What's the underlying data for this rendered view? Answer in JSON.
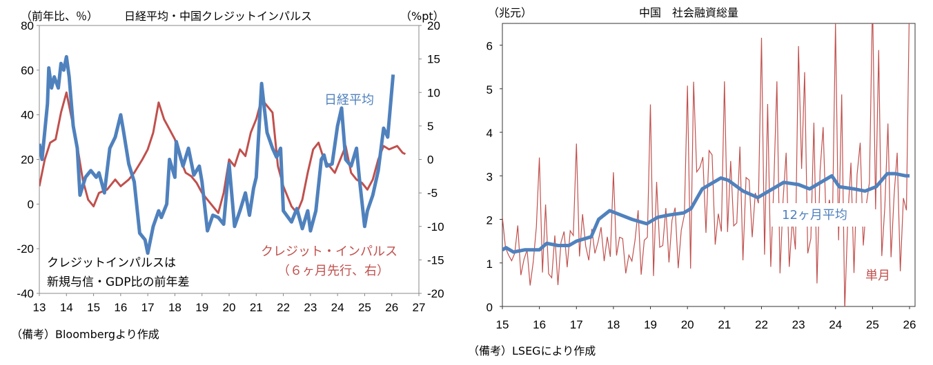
{
  "colors": {
    "blue": "#4f81bd",
    "red": "#c0504d"
  },
  "chart_data": [
    {
      "type": "line",
      "title": "日経平均・中国クレジットインパルス",
      "ylabel": "（前年比、％）",
      "y2label": "（%pt）",
      "xlim": [
        2013,
        2027
      ],
      "ylim": [
        -40,
        80
      ],
      "y2lim": [
        -20,
        20
      ],
      "xticks": [
        "13",
        "14",
        "15",
        "16",
        "17",
        "18",
        "19",
        "20",
        "21",
        "22",
        "23",
        "24",
        "25",
        "26",
        "27"
      ],
      "yticks": [
        "80",
        "60",
        "40",
        "20",
        "0",
        "-20",
        "-40"
      ],
      "y2ticks": [
        "20",
        "15",
        "10",
        "5",
        "0",
        "-5",
        "-10",
        "-15",
        "-20"
      ],
      "series": [
        {
          "name": "日経平均",
          "axis": "left",
          "color": "blue",
          "points": [
            [
              2013.0,
              27
            ],
            [
              2013.1,
              20
            ],
            [
              2013.3,
              45
            ],
            [
              2013.35,
              61
            ],
            [
              2013.45,
              52
            ],
            [
              2013.55,
              57
            ],
            [
              2013.7,
              52
            ],
            [
              2013.8,
              63
            ],
            [
              2013.9,
              60
            ],
            [
              2014.0,
              66
            ],
            [
              2014.1,
              57
            ],
            [
              2014.25,
              35
            ],
            [
              2014.4,
              25
            ],
            [
              2014.5,
              4
            ],
            [
              2014.7,
              12
            ],
            [
              2014.9,
              15
            ],
            [
              2015.1,
              12
            ],
            [
              2015.2,
              14
            ],
            [
              2015.4,
              5
            ],
            [
              2015.6,
              25
            ],
            [
              2015.8,
              30
            ],
            [
              2016.0,
              40
            ],
            [
              2016.1,
              33
            ],
            [
              2016.3,
              18
            ],
            [
              2016.5,
              10
            ],
            [
              2016.7,
              -13
            ],
            [
              2016.9,
              -16
            ],
            [
              2017.0,
              -22
            ],
            [
              2017.2,
              -10
            ],
            [
              2017.4,
              -3
            ],
            [
              2017.5,
              -6
            ],
            [
              2017.7,
              0
            ],
            [
              2017.8,
              20
            ],
            [
              2018.0,
              12
            ],
            [
              2018.05,
              28
            ],
            [
              2018.3,
              17
            ],
            [
              2018.5,
              25
            ],
            [
              2018.7,
              13
            ],
            [
              2018.9,
              17
            ],
            [
              2019.0,
              10
            ],
            [
              2019.2,
              -12
            ],
            [
              2019.4,
              -5
            ],
            [
              2019.6,
              -6
            ],
            [
              2019.8,
              -9
            ],
            [
              2020.0,
              18
            ],
            [
              2020.2,
              -10
            ],
            [
              2020.4,
              -3
            ],
            [
              2020.6,
              5
            ],
            [
              2020.75,
              -5
            ],
            [
              2020.9,
              7
            ],
            [
              2021.0,
              12
            ],
            [
              2021.2,
              54
            ],
            [
              2021.4,
              32
            ],
            [
              2021.6,
              25
            ],
            [
              2021.75,
              21
            ],
            [
              2021.9,
              25
            ],
            [
              2022.0,
              -3
            ],
            [
              2022.3,
              -8
            ],
            [
              2022.5,
              -2
            ],
            [
              2022.7,
              -11
            ],
            [
              2022.9,
              -3
            ],
            [
              2023.0,
              -12
            ],
            [
              2023.2,
              -3
            ],
            [
              2023.4,
              20
            ],
            [
              2023.5,
              22
            ],
            [
              2023.6,
              17
            ],
            [
              2023.8,
              18
            ],
            [
              2024.0,
              35
            ],
            [
              2024.15,
              43
            ],
            [
              2024.3,
              20
            ],
            [
              2024.5,
              17
            ],
            [
              2024.7,
              25
            ],
            [
              2024.8,
              12
            ],
            [
              2025.0,
              -10
            ],
            [
              2025.1,
              -3
            ],
            [
              2025.3,
              4
            ],
            [
              2025.5,
              15
            ],
            [
              2025.7,
              34
            ],
            [
              2025.85,
              30
            ],
            [
              2026.05,
              58
            ]
          ]
        },
        {
          "name": "クレジット・インパルス（６ヶ月先行、右）",
          "axis": "right",
          "color": "red",
          "points": [
            [
              2013.0,
              -4
            ],
            [
              2013.2,
              0
            ],
            [
              2013.4,
              2.5
            ],
            [
              2013.6,
              3
            ],
            [
              2013.8,
              7
            ],
            [
              2014.0,
              10
            ],
            [
              2014.2,
              6
            ],
            [
              2014.4,
              2
            ],
            [
              2014.6,
              -3
            ],
            [
              2014.8,
              -6
            ],
            [
              2015.0,
              -7
            ],
            [
              2015.2,
              -5
            ],
            [
              2015.5,
              -4.5
            ],
            [
              2015.8,
              -3
            ],
            [
              2016.0,
              -4
            ],
            [
              2016.3,
              -3
            ],
            [
              2016.5,
              -2
            ],
            [
              2016.8,
              0
            ],
            [
              2017.0,
              1.5
            ],
            [
              2017.2,
              4
            ],
            [
              2017.4,
              8.5
            ],
            [
              2017.6,
              6
            ],
            [
              2017.8,
              4.5
            ],
            [
              2018.0,
              3
            ],
            [
              2018.2,
              0
            ],
            [
              2018.4,
              -2
            ],
            [
              2018.6,
              -2.5
            ],
            [
              2018.8,
              -3.5
            ],
            [
              2019.0,
              -5
            ],
            [
              2019.2,
              -6
            ],
            [
              2019.4,
              -7
            ],
            [
              2019.6,
              -8
            ],
            [
              2019.8,
              -5
            ],
            [
              2020.0,
              0
            ],
            [
              2020.2,
              -1
            ],
            [
              2020.4,
              1.5
            ],
            [
              2020.6,
              0.5
            ],
            [
              2020.8,
              4
            ],
            [
              2021.0,
              6
            ],
            [
              2021.2,
              9
            ],
            [
              2021.4,
              8
            ],
            [
              2021.6,
              7
            ],
            [
              2021.8,
              -1
            ],
            [
              2022.0,
              -4
            ],
            [
              2022.3,
              -7
            ],
            [
              2022.5,
              -8
            ],
            [
              2022.7,
              -6
            ],
            [
              2022.9,
              -2
            ],
            [
              2023.1,
              1.5
            ],
            [
              2023.3,
              2.5
            ],
            [
              2023.5,
              0
            ],
            [
              2023.7,
              -1
            ],
            [
              2023.9,
              -2
            ],
            [
              2024.1,
              0
            ],
            [
              2024.3,
              2
            ],
            [
              2024.5,
              -2
            ],
            [
              2024.7,
              -3
            ],
            [
              2024.9,
              -3.5
            ],
            [
              2025.1,
              -4.5
            ],
            [
              2025.3,
              -3
            ],
            [
              2025.5,
              0
            ],
            [
              2025.7,
              2
            ],
            [
              2025.9,
              1.5
            ],
            [
              2026.2,
              2
            ],
            [
              2026.4,
              1
            ],
            [
              2026.5,
              0.8
            ]
          ]
        }
      ],
      "annotations": {
        "nikkei": "日経平均",
        "credit": "クレジット・インパルス",
        "credit_sub": "（６ヶ月先行、右）",
        "box1": "クレジットインパルスは",
        "box2": "新規与信・GDP比の前年差"
      },
      "source": "（備考）Bloombergより作成"
    },
    {
      "type": "line",
      "title": "中国　社会融資総量",
      "ylabel": "（兆元）",
      "xlim": [
        2015,
        2026
      ],
      "ylim": [
        0,
        6.5
      ],
      "xticks": [
        "15",
        "16",
        "17",
        "18",
        "19",
        "20",
        "21",
        "22",
        "23",
        "24",
        "25",
        "26"
      ],
      "yticks": [
        "6",
        "5",
        "4",
        "3",
        "2",
        "1",
        "0"
      ],
      "monthly_start": 2015.0,
      "series": [
        {
          "name": "単月",
          "color": "red",
          "monthly": [
            2.05,
            1.35,
            1.18,
            1.05,
            1.22,
            1.86,
            0.72,
            1.08,
            1.3,
            0.48,
            1.02,
            1.82,
            3.42,
            0.78,
            2.34,
            0.75,
            0.66,
            1.63,
            0.49,
            1.47,
            1.72,
            0.9,
            1.74,
            1.63,
            3.74,
            1.15,
            2.12,
            1.39,
            1.06,
            1.78,
            1.22,
            1.48,
            1.82,
            1.04,
            1.6,
            1.14,
            3.08,
            1.17,
            1.59,
            1.56,
            0.76,
            1.18,
            1.04,
            1.52,
            2.21,
            0.73,
            1.52,
            1.59,
            4.64,
            0.7,
            2.86,
            1.36,
            1.4,
            2.26,
            1.01,
            1.98,
            2.27,
            0.88,
            1.75,
            2.1,
            5.07,
            0.87,
            5.16,
            3.09,
            3.19,
            3.43,
            1.69,
            3.58,
            3.48,
            1.42,
            2.13,
            1.72,
            5.17,
            1.71,
            3.34,
            1.85,
            1.92,
            3.67,
            1.06,
            2.96,
            2.9,
            1.59,
            2.61,
            2.37,
            6.17,
            1.19,
            4.65,
            0.91,
            2.79,
            5.17,
            0.76,
            2.43,
            3.53,
            0.91,
            1.99,
            1.31,
            5.98,
            3.16,
            5.38,
            1.22,
            1.56,
            4.22,
            0.53,
            3.12,
            4.12,
            1.85,
            2.45,
            1.94,
            6.5,
            1.52,
            4.87,
            -0.07,
            2.06,
            3.3,
            0.77,
            3.03,
            3.76,
            1.4,
            2.34,
            2.85,
            7.06,
            2.23,
            5.89,
            1.16,
            2.29,
            4.2,
            1.13,
            2.57,
            3.53,
            0.81,
            2.49,
            2.21,
            7.2
          ]
        },
        {
          "name": "12ヶ月平均",
          "color": "blue",
          "points": [
            [
              2015.0,
              1.3
            ],
            [
              2015.1,
              1.35
            ],
            [
              2015.3,
              1.25
            ],
            [
              2015.6,
              1.3
            ],
            [
              2016.0,
              1.3
            ],
            [
              2016.2,
              1.45
            ],
            [
              2016.5,
              1.4
            ],
            [
              2016.8,
              1.4
            ],
            [
              2017.0,
              1.5
            ],
            [
              2017.4,
              1.6
            ],
            [
              2017.6,
              2.0
            ],
            [
              2017.9,
              2.2
            ],
            [
              2018.2,
              2.1
            ],
            [
              2018.5,
              2.0
            ],
            [
              2018.9,
              1.9
            ],
            [
              2019.2,
              2.05
            ],
            [
              2019.5,
              2.1
            ],
            [
              2019.9,
              2.15
            ],
            [
              2020.1,
              2.25
            ],
            [
              2020.4,
              2.7
            ],
            [
              2020.9,
              2.95
            ],
            [
              2021.1,
              2.9
            ],
            [
              2021.5,
              2.65
            ],
            [
              2021.9,
              2.5
            ],
            [
              2022.3,
              2.7
            ],
            [
              2022.6,
              2.85
            ],
            [
              2023.0,
              2.8
            ],
            [
              2023.3,
              2.7
            ],
            [
              2023.6,
              2.85
            ],
            [
              2023.9,
              3.0
            ],
            [
              2024.1,
              2.75
            ],
            [
              2024.5,
              2.7
            ],
            [
              2024.8,
              2.65
            ],
            [
              2025.1,
              2.75
            ],
            [
              2025.4,
              3.05
            ],
            [
              2025.6,
              3.05
            ],
            [
              2025.9,
              3.0
            ],
            [
              2026.0,
              3.0
            ]
          ]
        }
      ],
      "annotations": {
        "avg": "12ヶ月平均",
        "single": "単月"
      },
      "source": "（備考）LSEGにより作成"
    }
  ]
}
